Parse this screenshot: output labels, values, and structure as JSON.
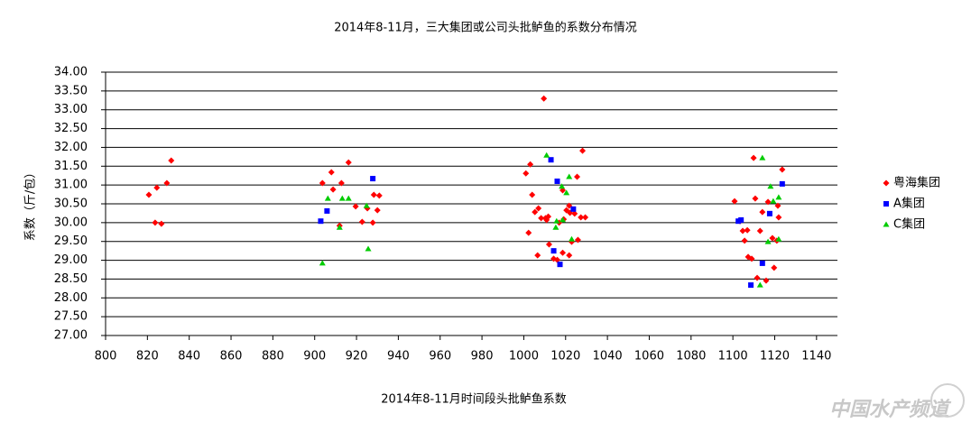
{
  "chart_data": {
    "type": "scatter",
    "title": "2014年8-11月，三大集团或公司头批鲈鱼的系数分布情况",
    "x_label": "2014年8-11月时间段头批鲈鱼系数",
    "y_label": "系数（斤/包）",
    "watermark": "中国水产频道",
    "xlim": [
      800,
      1150
    ],
    "xticks": [
      800,
      820,
      840,
      860,
      880,
      900,
      920,
      940,
      960,
      980,
      1000,
      1020,
      1040,
      1060,
      1080,
      1100,
      1120,
      1140
    ],
    "ylim": [
      27,
      34
    ],
    "yticks": [
      {
        "value": 27,
        "label": "27.00"
      },
      {
        "value": 27.5,
        "label": "27.50"
      },
      {
        "value": 28,
        "label": "28.00"
      },
      {
        "value": 28.5,
        "label": "28.50"
      },
      {
        "value": 29,
        "label": "29.00"
      },
      {
        "value": 29.5,
        "label": "29.50"
      },
      {
        "value": 30,
        "label": "30.00"
      },
      {
        "value": 30.5,
        "label": "30.50"
      },
      {
        "value": 31,
        "label": "31.00"
      },
      {
        "value": 31.5,
        "label": "31.50"
      },
      {
        "value": 32,
        "label": "32.00"
      },
      {
        "value": 32.5,
        "label": "32.50"
      },
      {
        "value": 33,
        "label": "33.00"
      },
      {
        "value": 33.5,
        "label": "33.50"
      },
      {
        "value": 34,
        "label": "34.00"
      }
    ],
    "grid": true,
    "legend": "right",
    "series": [
      {
        "name": "粤海集团",
        "color": "#ff0000",
        "marker": "diamond",
        "x": [
          820.7,
          824.5,
          829.3,
          831.4,
          823.7,
          826.7,
          903.7,
          908,
          908.8,
          912.8,
          916.2,
          911.9,
          919.6,
          922.7,
          928.3,
          930.9,
          927.8,
          930,
          925.2,
          1009.6,
          1028.1,
          1003.1,
          1001,
          1004,
          1025.5,
          1005.3,
          1007,
          1008.3,
          1010.4,
          1011.7,
          1010.9,
          1016.9,
          1019.1,
          1020.4,
          1022.1,
          1024.3,
          1021.7,
          1027.3,
          1029.4,
          1002.3,
          1012.1,
          1014.3,
          1016,
          1006.6,
          1018.6,
          1021.7,
          1022.9,
          1025.9,
          1018.6,
          1100.8,
          1109.9,
          1123.6,
          1110.7,
          1116.8,
          1121.5,
          1114.1,
          1121.9,
          1103.4,
          1104.7,
          1106.9,
          1113,
          1105.6,
          1118.9,
          1121,
          1107.3,
          1109,
          1111.6,
          1115.9,
          1119.7
        ],
        "values": [
          30.74,
          30.93,
          31.05,
          31.65,
          30.0,
          29.97,
          31.05,
          31.34,
          30.88,
          31.05,
          31.6,
          29.92,
          30.43,
          30.02,
          30.74,
          30.72,
          30.0,
          30.33,
          30.38,
          33.3,
          31.91,
          31.55,
          31.31,
          30.74,
          31.22,
          30.28,
          30.38,
          30.12,
          30.12,
          30.16,
          30.07,
          30.0,
          30.09,
          30.33,
          30.26,
          30.24,
          30.45,
          30.14,
          30.14,
          29.73,
          29.42,
          29.04,
          29.01,
          29.13,
          29.2,
          29.13,
          29.49,
          29.54,
          30.86,
          30.57,
          31.72,
          31.41,
          30.64,
          30.55,
          30.45,
          30.28,
          30.14,
          30.04,
          29.78,
          29.8,
          29.78,
          29.52,
          29.59,
          29.52,
          29.09,
          29.04,
          28.53,
          28.46,
          28.8
        ]
      },
      {
        "name": "A集团",
        "color": "#0000ff",
        "marker": "square",
        "x": [
          902.9,
          905.9,
          927.8,
          1013,
          1016,
          1023.7,
          1014.3,
          1017.3,
          1102.6,
          1103.9,
          1117.6,
          1123.6,
          1108.6,
          1114.1
        ],
        "values": [
          30.04,
          30.31,
          31.17,
          31.67,
          31.1,
          30.36,
          29.25,
          28.89,
          30.04,
          30.07,
          30.24,
          31.03,
          28.34,
          28.92
        ]
      },
      {
        "name": "C集团",
        "color": "#00cc00",
        "marker": "triangle",
        "x": [
          903.7,
          906.3,
          911.9,
          913.2,
          916.2,
          924.8,
          925.6,
          1010.9,
          1021.7,
          1018.2,
          1020.4,
          1015.7,
          1018.6,
          1015.3,
          1022.9,
          1114.1,
          1118,
          1121.9,
          1116.8,
          1121.9,
          1113,
          1119.3
        ],
        "values": [
          28.92,
          30.64,
          29.87,
          30.64,
          30.64,
          30.45,
          29.3,
          31.79,
          31.22,
          30.96,
          30.79,
          30.04,
          30.07,
          29.87,
          29.56,
          31.72,
          30.96,
          30.67,
          29.49,
          29.56,
          28.34,
          30.57
        ]
      }
    ]
  }
}
